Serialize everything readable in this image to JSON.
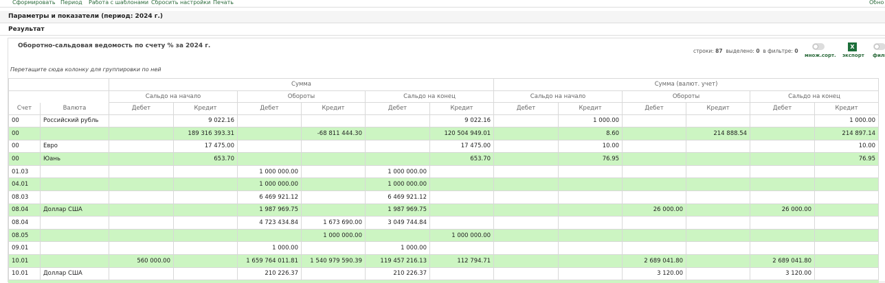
{
  "toolbar": {
    "items": [
      "Сформировать",
      "Период",
      "Работа с шаблонами",
      "Сбросить настройки",
      "Печать"
    ],
    "right": "Обно"
  },
  "params_title": "Параметры и показатели (период: 2024 г.)",
  "result_title": "Результат",
  "report": {
    "title": "Оборотно-сальдовая ведомость по счету % за 2024 г.",
    "stats": {
      "rows_label": "строки:",
      "rows": "87",
      "selected_label": "выделено:",
      "selected": "0",
      "filter_label": "в фильтре:",
      "filter": "0"
    },
    "controls": {
      "multisort": "множ.сорт.",
      "excel_icon": "X",
      "export": "экспорт",
      "filter": "филь"
    },
    "group_hint": "Перетащите сюда колонку для группировки по ней"
  },
  "table": {
    "groups": [
      "Сумма",
      "Сумма (валют. учет)"
    ],
    "subgroups": [
      "Сальдо на начало",
      "Обороты",
      "Сальдо на конец",
      "Сальдо на начало",
      "Обороты",
      "Сальдо на конец"
    ],
    "account_header": "Счет",
    "currency_header": "Валюта",
    "side_headers": [
      "Дебет",
      "Кредит",
      "Дебет",
      "Кредит",
      "Дебет",
      "Кредит",
      "Дебет",
      "Кредит",
      "Дебет",
      "Кредит",
      "Дебет",
      "Кредит"
    ],
    "rows": [
      [
        "00",
        "Российский рубль",
        null,
        "9 022.16",
        null,
        null,
        null,
        "9 022.16",
        null,
        "1 000.00",
        null,
        null,
        null,
        "1 000.00"
      ],
      [
        "00",
        null,
        null,
        "189 316 393.31",
        null,
        "-68 811 444.30",
        null,
        "120 504 949.01",
        null,
        "8.60",
        null,
        "214 888.54",
        null,
        "214 897.14"
      ],
      [
        "00",
        "Евро",
        null,
        "17 475.00",
        null,
        null,
        null,
        "17 475.00",
        null,
        "10.00",
        null,
        null,
        null,
        "10.00"
      ],
      [
        "00",
        "Юань",
        null,
        "653.70",
        null,
        null,
        null,
        "653.70",
        null,
        "76.95",
        null,
        null,
        null,
        "76.95"
      ],
      [
        "01.03",
        null,
        null,
        null,
        "1 000 000.00",
        null,
        "1 000 000.00",
        null,
        null,
        null,
        null,
        null,
        null,
        null
      ],
      [
        "04.01",
        null,
        null,
        null,
        "1 000 000.00",
        null,
        "1 000 000.00",
        null,
        null,
        null,
        null,
        null,
        null,
        null
      ],
      [
        "08.03",
        null,
        null,
        null,
        "6 469 921.12",
        null,
        "6 469 921.12",
        null,
        null,
        null,
        null,
        null,
        null,
        null
      ],
      [
        "08.04",
        "Доллар США",
        null,
        null,
        "1 987 969.75",
        null,
        "1 987 969.75",
        null,
        null,
        null,
        "26 000.00",
        null,
        "26 000.00",
        null
      ],
      [
        "08.04",
        null,
        null,
        null,
        "4 723 434.84",
        "1 673 690.00",
        "3 049 744.84",
        null,
        null,
        null,
        null,
        null,
        null,
        null
      ],
      [
        "08.05",
        null,
        null,
        null,
        null,
        "1 000 000.00",
        null,
        "1 000 000.00",
        null,
        null,
        null,
        null,
        null,
        null
      ],
      [
        "09.01",
        null,
        null,
        null,
        "1 000.00",
        null,
        "1 000.00",
        null,
        null,
        null,
        null,
        null,
        null,
        null
      ],
      [
        "10.01",
        null,
        "560 000.00",
        null,
        "1 659 764 011.81",
        "1 540 979 590.39",
        "119 457 216.13",
        "112 794.71",
        null,
        null,
        "2 689 041.80",
        null,
        "2 689 041.80",
        null
      ],
      [
        "10.01",
        "Доллар США",
        null,
        null,
        "210 226.37",
        null,
        "210 226.37",
        null,
        null,
        null,
        "3 120.00",
        null,
        "3 120.00",
        null
      ]
    ]
  }
}
